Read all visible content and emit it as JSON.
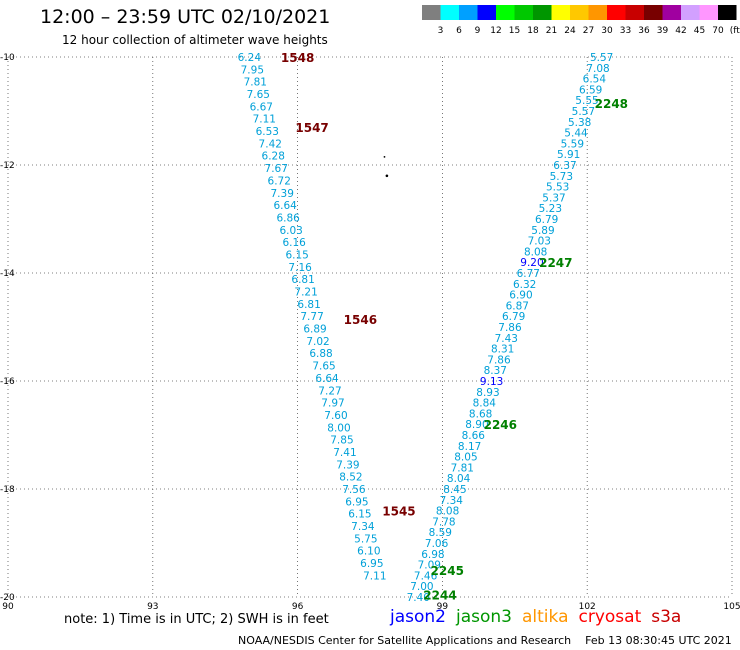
{
  "title": "12:00 – 23:59 UTC 02/10/2021",
  "subtitle": "12 hour collection of altimeter wave heights",
  "color_scale": {
    "labels": [
      "3",
      "6",
      "9",
      "12",
      "15",
      "18",
      "21",
      "24",
      "27",
      "30",
      "33",
      "36",
      "39",
      "42",
      "45",
      "70",
      "(ft)"
    ],
    "colors": [
      "#7f7f7f",
      "#00ffff",
      "#00a0ff",
      "#0000ff",
      "#00ff00",
      "#00c800",
      "#009600",
      "#ffff00",
      "#ffc800",
      "#ff9600",
      "#ff0000",
      "#c80000",
      "#780000",
      "#a000a0",
      "#d2a0ff",
      "#ff96ff",
      "#000000"
    ]
  },
  "chart_data": {
    "type": "scatter",
    "xlim": [
      90,
      105
    ],
    "ylim": [
      -20,
      -10
    ],
    "xticks": [
      "90",
      "93",
      "96",
      "99",
      "102",
      "105"
    ],
    "yticks": [
      "-10",
      "-12",
      "-14",
      "-16",
      "-18",
      "-20"
    ],
    "grid": true,
    "track_left_values": [
      "6.24",
      "7.95",
      "7.81",
      "7.65",
      "6.67",
      "7.11",
      "6.53",
      "7.42",
      "6.28",
      "7.67",
      "6.72",
      "7.39",
      "6.64",
      "6.86",
      "6.03",
      "6.16",
      "6.15",
      "7.16",
      "6.81",
      "7.21",
      "6.81",
      "7.77",
      "6.89",
      "7.02",
      "6.88",
      "7.65",
      "6.64",
      "7.27",
      "7.97",
      "7.60",
      "8.00",
      "7.85",
      "7.41",
      "7.39",
      "8.52",
      "7.56",
      "6.95",
      "6.15",
      "7.34",
      "5.75",
      "6.10",
      "6.95",
      "7.11"
    ],
    "track_right_values": [
      "5.57",
      "7.08",
      "6.54",
      "6.59",
      "5.55",
      "5.57",
      "5.38",
      "5.44",
      "5.59",
      "5.91",
      "6.37",
      "5.73",
      "5.53",
      "5.37",
      "5.23",
      "6.79",
      "5.89",
      "7.03",
      "8.08",
      "9.20",
      "6.77",
      "6.32",
      "6.90",
      "6.87",
      "6.79",
      "7.86",
      "7.43",
      "8.31",
      "7.86",
      "8.37",
      "9.13",
      "8.93",
      "8.84",
      "8.68",
      "8.90",
      "8.66",
      "8.17",
      "8.05",
      "7.81",
      "8.04",
      "8.45",
      "7.34",
      "8.08",
      "7.78",
      "8.59",
      "7.06",
      "6.98",
      "7.09",
      "7.46",
      "7.00",
      "7.40"
    ],
    "time_labels": [
      {
        "text": "1548",
        "x": 96.0,
        "y": -10.0,
        "color": "#780000"
      },
      {
        "text": "1547",
        "x": 96.3,
        "y": -11.3,
        "color": "#780000"
      },
      {
        "text": "1546",
        "x": 97.3,
        "y": -14.85,
        "color": "#780000"
      },
      {
        "text": "1545",
        "x": 98.1,
        "y": -18.4,
        "color": "#780000"
      },
      {
        "text": "2248",
        "x": 102.5,
        "y": -10.85,
        "color": "#008000"
      },
      {
        "text": "2247",
        "x": 101.35,
        "y": -13.8,
        "color": "#008000"
      },
      {
        "text": "2246",
        "x": 100.2,
        "y": -16.8,
        "color": "#008000"
      },
      {
        "text": "2245",
        "x": 99.1,
        "y": -19.5,
        "color": "#008000"
      },
      {
        "text": "2244",
        "x": 98.95,
        "y": -19.95,
        "color": "#008000"
      }
    ]
  },
  "footer": {
    "note": "note:  1) Time is in UTC;  2) SWH is in feet",
    "legend": [
      {
        "name": "jason2",
        "color": "#0000ff"
      },
      {
        "name": "jason3",
        "color": "#009600"
      },
      {
        "name": "altika",
        "color": "#ff9600"
      },
      {
        "name": "cryosat",
        "color": "#ff0000"
      },
      {
        "name": "s3a",
        "color": "#c80000"
      }
    ],
    "credit": "NOAA/NESDIS Center for Satellite Applications and Research    Feb 13 08:30:45 UTC 2021"
  }
}
